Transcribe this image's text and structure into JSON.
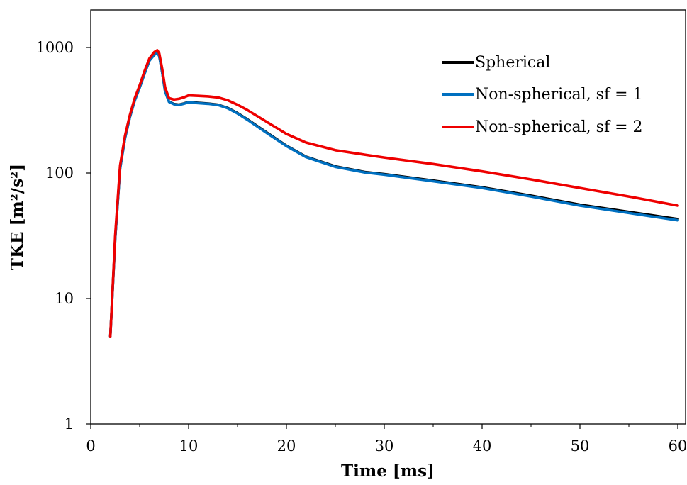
{
  "chart_data": {
    "type": "line",
    "xlabel": "Time [ms]",
    "ylabel": "TKE  [m²/s²]",
    "xlim": [
      0,
      60
    ],
    "ylim": [
      1,
      2000
    ],
    "yscale": "log",
    "xticks": [
      0,
      10,
      20,
      30,
      40,
      50,
      60
    ],
    "yticks": [
      1,
      10,
      100,
      1000
    ],
    "xtick_labels": [
      "0",
      "10",
      "20",
      "30",
      "40",
      "50",
      "60"
    ],
    "ytick_labels": [
      "1",
      "10",
      "100",
      "1000"
    ],
    "grid": false,
    "legend_position": "top-right",
    "series": [
      {
        "name": "Spherical",
        "color": "#000000",
        "x": [
          2,
          2.5,
          3,
          3.5,
          4,
          4.5,
          5,
          5.5,
          6,
          6.5,
          6.8,
          7,
          7.3,
          7.6,
          8,
          8.5,
          9,
          9.5,
          10,
          11,
          12,
          13,
          14,
          15,
          16,
          18,
          20,
          22,
          25,
          28,
          30,
          35,
          40,
          45,
          50,
          55,
          60
        ],
        "y": [
          5,
          30,
          110,
          190,
          280,
          380,
          480,
          620,
          790,
          880,
          910,
          860,
          640,
          450,
          370,
          355,
          350,
          358,
          368,
          362,
          358,
          350,
          330,
          300,
          268,
          210,
          165,
          135,
          113,
          102,
          98,
          87,
          77,
          66,
          56,
          49,
          43
        ]
      },
      {
        "name": "Non-spherical, sf = 1",
        "color": "#0070C0",
        "x": [
          2,
          2.5,
          3,
          3.5,
          4,
          4.5,
          5,
          5.5,
          6,
          6.5,
          6.8,
          7,
          7.3,
          7.6,
          8,
          8.5,
          9,
          9.5,
          10,
          11,
          12,
          13,
          14,
          15,
          16,
          18,
          20,
          22,
          25,
          28,
          30,
          35,
          40,
          45,
          50,
          55,
          60
        ],
        "y": [
          5,
          30,
          108,
          188,
          278,
          378,
          478,
          618,
          785,
          875,
          905,
          855,
          635,
          445,
          368,
          353,
          348,
          356,
          366,
          360,
          356,
          348,
          328,
          298,
          266,
          208,
          164,
          134,
          112,
          101,
          97,
          86,
          76,
          65,
          55,
          48,
          42
        ]
      },
      {
        "name": "Non-spherical, sf = 2",
        "color": "#EE0000",
        "x": [
          2,
          2.5,
          3,
          3.5,
          4,
          4.5,
          5,
          5.5,
          6,
          6.5,
          6.8,
          7,
          7.3,
          7.6,
          8,
          8.5,
          9,
          9.5,
          10,
          11,
          12,
          13,
          14,
          15,
          16,
          18,
          20,
          22,
          25,
          28,
          30,
          35,
          40,
          45,
          50,
          55,
          60
        ],
        "y": [
          5,
          32,
          115,
          198,
          290,
          395,
          500,
          650,
          820,
          920,
          950,
          900,
          680,
          480,
          395,
          385,
          390,
          400,
          415,
          412,
          408,
          400,
          380,
          350,
          318,
          255,
          205,
          175,
          152,
          140,
          133,
          118,
          103,
          89,
          76,
          65,
          55
        ]
      }
    ]
  }
}
